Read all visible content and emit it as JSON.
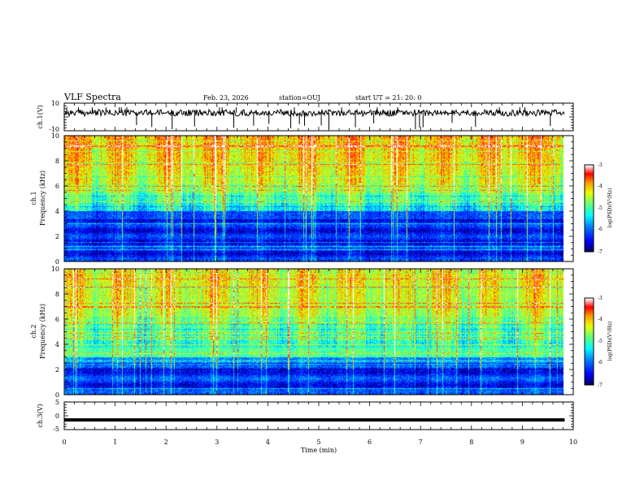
{
  "header": {
    "title": "VLF Spectra",
    "date": "Feb. 23, 2026",
    "station": "station=OUJ",
    "start_ut": "start UT =  21: 20: 0"
  },
  "chart_data": [
    {
      "id": "ch1-waveform",
      "type": "line",
      "ylabel": "ch.1(V)",
      "ylim": [
        -10,
        10
      ],
      "yticks": [
        "10",
        "-10"
      ],
      "xlim": [
        0,
        10
      ],
      "baseline": 3,
      "noise": 0.6,
      "spike_times_min": [
        0.05,
        0.28,
        0.55,
        0.82,
        1.08,
        1.12,
        1.23,
        1.42,
        1.72,
        2.12,
        2.56,
        3.05,
        3.1,
        3.33,
        3.38,
        3.72,
        4.02,
        4.45,
        4.52,
        4.62,
        4.72,
        5.05,
        5.2,
        5.45,
        5.72,
        6.08,
        6.15,
        6.55,
        6.9,
        6.98,
        7.05,
        7.62,
        8.08,
        8.55,
        8.95,
        9.05,
        9.55
      ]
    },
    {
      "id": "ch1-spectrogram",
      "type": "heatmap",
      "ylabel_line1": "ch.1",
      "ylabel_line2": "Frequency (kHz)",
      "xlim": [
        0,
        9.83
      ],
      "ylim": [
        0,
        10
      ],
      "yticks": [
        "0",
        "2",
        "4",
        "6",
        "8",
        "10"
      ],
      "colorbar": {
        "label": "log(PSD)(V²/Hz)",
        "range": [
          -7,
          -3
        ],
        "ticks": [
          "-3",
          "-4",
          "-5",
          "-6",
          "-7"
        ]
      }
    },
    {
      "id": "ch2-spectrogram",
      "type": "heatmap",
      "ylabel_line1": "ch.2",
      "ylabel_line2": "Frequency (kHz)",
      "xlim": [
        0,
        9.83
      ],
      "ylim": [
        0,
        10
      ],
      "yticks": [
        "0",
        "2",
        "4",
        "6",
        "8",
        "10"
      ],
      "colorbar": {
        "label": "log(PSD)(V²/Hz)",
        "range": [
          -7,
          -3
        ],
        "ticks": [
          "-3",
          "-4",
          "-5",
          "-6",
          "-7"
        ]
      }
    },
    {
      "id": "ch3-waveform",
      "type": "line",
      "ylabel": "ch.3(V)",
      "ylim": [
        -5,
        5
      ],
      "yticks": [
        "5",
        "0",
        "-5"
      ],
      "xlim": [
        0,
        9.83
      ],
      "value": -1.5,
      "xlabel": "Time (min)",
      "xticks": [
        "0",
        "1",
        "2",
        "3",
        "4",
        "5",
        "6",
        "7",
        "8",
        "9",
        "10"
      ]
    }
  ],
  "colors": {
    "colormap": [
      "#000080",
      "#0000ff",
      "#0080ff",
      "#00ffff",
      "#80ff80",
      "#ffff00",
      "#ff8000",
      "#ff0000",
      "#ffffff"
    ]
  }
}
